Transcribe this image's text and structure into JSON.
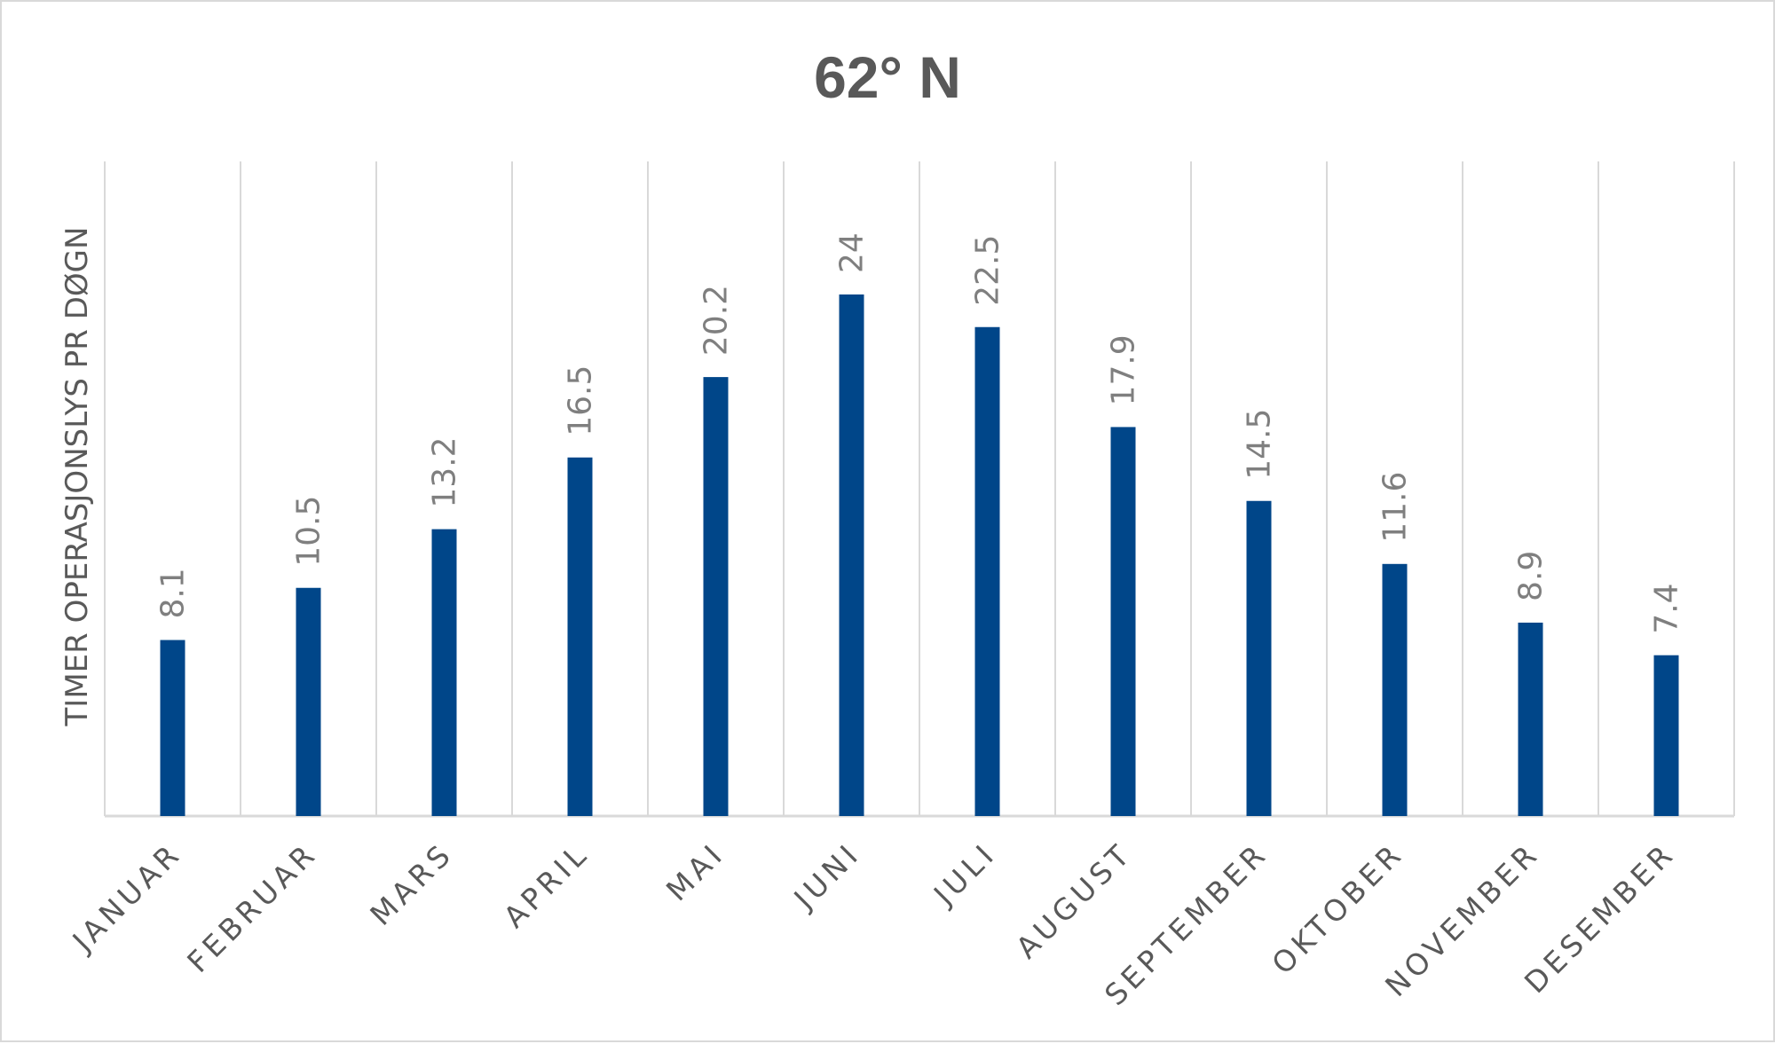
{
  "chart_data": {
    "type": "bar",
    "title": "62° N",
    "xlabel": "",
    "ylabel": "TIMER OPERASJONSLYS PR DØGN",
    "categories": [
      "JANUAR",
      "FEBRUAR",
      "MARS",
      "APRIL",
      "MAI",
      "JUNI",
      "JULI",
      "AUGUST",
      "SEPTEMBER",
      "OKTOBER",
      "NOVEMBER",
      "DESEMBER"
    ],
    "values": [
      8.1,
      10.5,
      13.2,
      16.5,
      20.2,
      24,
      22.5,
      17.9,
      14.5,
      11.6,
      8.9,
      7.4
    ],
    "data_labels": [
      "8.1",
      "10.5",
      "13.2",
      "16.5",
      "20.2",
      "24",
      "22.5",
      "17.9",
      "14.5",
      "11.6",
      "8.9",
      "7.4"
    ],
    "ylim": [
      0,
      30
    ],
    "grid": "vertical",
    "legend": "none",
    "colors": {
      "bar": "#004689",
      "grid": "#d9d9d9",
      "text": "#595959",
      "data_label": "#7f7f7f"
    }
  }
}
